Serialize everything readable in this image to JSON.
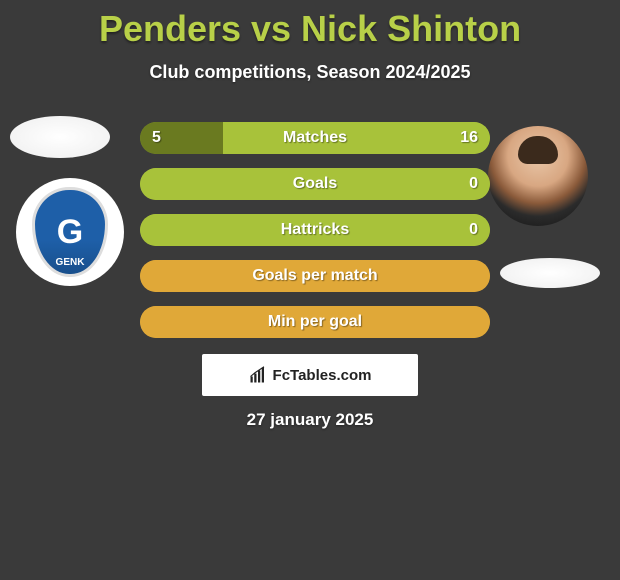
{
  "title": "Penders vs Nick Shinton",
  "subtitle": "Club competitions, Season 2024/2025",
  "date": "27 january 2025",
  "footer_text": "FcTables.com",
  "colors": {
    "background": "#3a3a3a",
    "accent": "#b8d048",
    "track_green": "#a8c23a",
    "left_fill": "#6a7a20",
    "text": "#ffffff"
  },
  "club_left": {
    "name": "GENK",
    "badge_bg": "#1e5fa8"
  },
  "bars": [
    {
      "label": "Matches",
      "left_value": "5",
      "right_value": "16",
      "left_pct": 23.8,
      "right_pct": 76.2,
      "track_color": "#a8c23a",
      "left_color": "#6a7a20",
      "right_color": "#a8c23a"
    },
    {
      "label": "Goals",
      "left_value": "",
      "right_value": "0",
      "left_pct": 0,
      "right_pct": 100,
      "track_color": "#a8c23a",
      "left_color": "#6a7a20",
      "right_color": "#a8c23a"
    },
    {
      "label": "Hattricks",
      "left_value": "",
      "right_value": "0",
      "left_pct": 0,
      "right_pct": 100,
      "track_color": "#a8c23a",
      "left_color": "#6a7a20",
      "right_color": "#a8c23a"
    },
    {
      "label": "Goals per match",
      "left_value": "",
      "right_value": "",
      "left_pct": 0,
      "right_pct": 100,
      "track_color": "#e0a838",
      "left_color": "#e0a838",
      "right_color": "#e0a838"
    },
    {
      "label": "Min per goal",
      "left_value": "",
      "right_value": "",
      "left_pct": 0,
      "right_pct": 100,
      "track_color": "#e0a838",
      "left_color": "#e0a838",
      "right_color": "#e0a838"
    }
  ]
}
